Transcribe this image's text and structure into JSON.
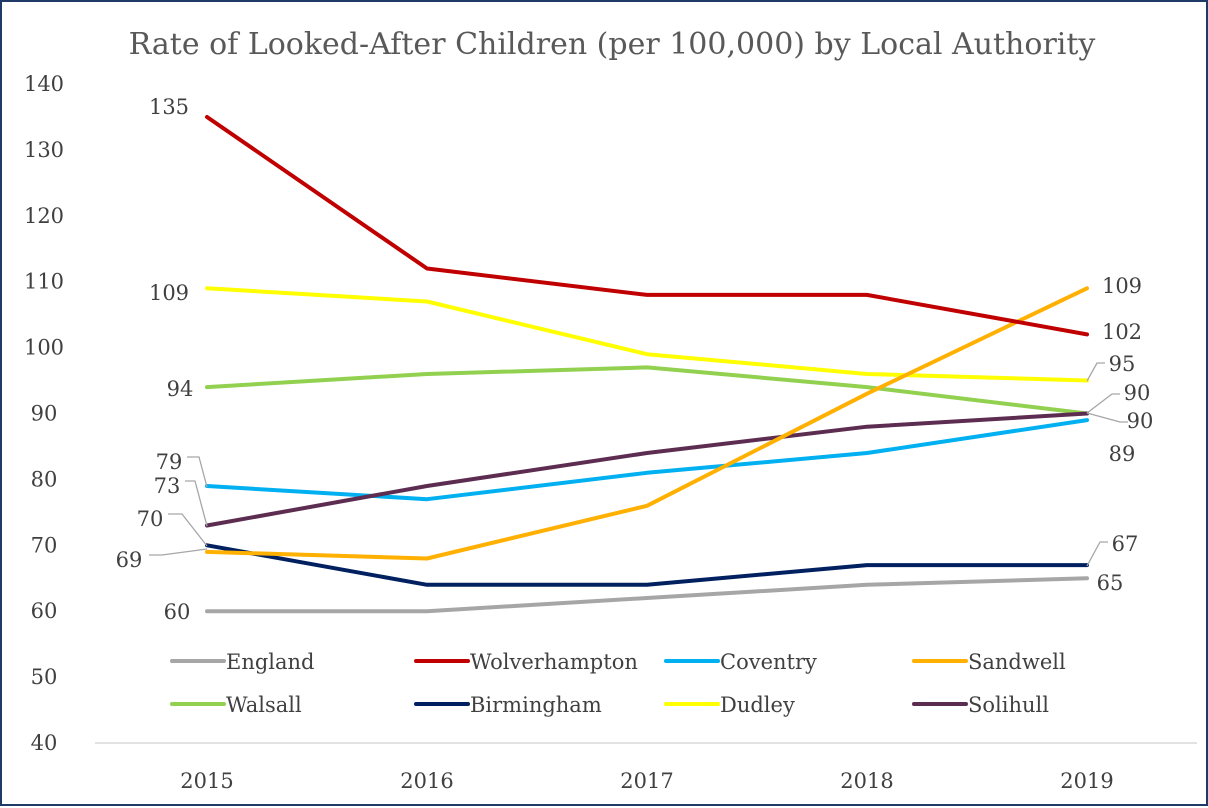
{
  "chart_data": {
    "type": "line",
    "title": "Rate of Looked-After Children (per 100,000) by Local Authority",
    "xlabel": "",
    "ylabel": "",
    "categories": [
      "2015",
      "2016",
      "2017",
      "2018",
      "2019"
    ],
    "ylim": [
      40,
      140
    ],
    "yticks": [
      40,
      50,
      60,
      70,
      80,
      90,
      100,
      110,
      120,
      130,
      140
    ],
    "grid": false,
    "legend_position": "bottom",
    "series": [
      {
        "name": "England",
        "color": "#a6a6a6",
        "values": [
          60,
          60,
          62,
          64,
          65
        ]
      },
      {
        "name": "Wolverhampton",
        "color": "#c00000",
        "values": [
          135,
          112,
          108,
          108,
          102
        ]
      },
      {
        "name": "Coventry",
        "color": "#00b0f0",
        "values": [
          79,
          77,
          81,
          84,
          89
        ]
      },
      {
        "name": "Sandwell",
        "color": "#ffb000",
        "values": [
          69,
          68,
          76,
          93,
          109
        ]
      },
      {
        "name": "Walsall",
        "color": "#92d050",
        "values": [
          94,
          96,
          97,
          94,
          90
        ]
      },
      {
        "name": "Birmingham",
        "color": "#002060",
        "values": [
          70,
          64,
          64,
          67,
          67
        ]
      },
      {
        "name": "Dudley",
        "color": "#ffff00",
        "values": [
          109,
          107,
          99,
          96,
          95
        ]
      },
      {
        "name": "Solihull",
        "color": "#5c2d50",
        "values": [
          73,
          79,
          84,
          88,
          90
        ]
      }
    ],
    "data_labels": [
      {
        "text": "135",
        "series": "Wolverhampton",
        "index": 0
      },
      {
        "text": "109",
        "series": "Dudley",
        "index": 0
      },
      {
        "text": "94",
        "series": "Walsall",
        "index": 0
      },
      {
        "text": "79",
        "series": "Coventry",
        "index": 0
      },
      {
        "text": "73",
        "series": "Solihull",
        "index": 0
      },
      {
        "text": "70",
        "series": "Birmingham",
        "index": 0
      },
      {
        "text": "69",
        "series": "Sandwell",
        "index": 0
      },
      {
        "text": "60",
        "series": "England",
        "index": 0
      },
      {
        "text": "109",
        "series": "Sandwell",
        "index": 4
      },
      {
        "text": "102",
        "series": "Wolverhampton",
        "index": 4
      },
      {
        "text": "95",
        "series": "Dudley",
        "index": 4
      },
      {
        "text": "90",
        "series": "Solihull",
        "index": 4
      },
      {
        "text": "90",
        "series": "Walsall",
        "index": 4
      },
      {
        "text": "89",
        "series": "Coventry",
        "index": 4
      },
      {
        "text": "67",
        "series": "Birmingham",
        "index": 4
      },
      {
        "text": "65",
        "series": "England",
        "index": 4
      }
    ]
  }
}
